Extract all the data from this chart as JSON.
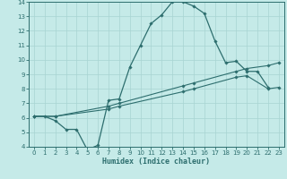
{
  "title": "",
  "xlabel": "Humidex (Indice chaleur)",
  "bg_color": "#c5eae8",
  "grid_color": "#a8d4d2",
  "line_color": "#2d6e6e",
  "xlim": [
    -0.5,
    23.5
  ],
  "ylim": [
    4,
    14
  ],
  "xticks": [
    0,
    1,
    2,
    3,
    4,
    5,
    6,
    7,
    8,
    9,
    10,
    11,
    12,
    13,
    14,
    15,
    16,
    17,
    18,
    19,
    20,
    21,
    22,
    23
  ],
  "yticks": [
    4,
    5,
    6,
    7,
    8,
    9,
    10,
    11,
    12,
    13,
    14
  ],
  "line1_x": [
    0,
    1,
    2,
    3,
    4,
    5,
    6,
    7,
    8,
    9,
    10,
    11,
    12,
    13,
    14,
    15,
    16,
    17,
    18,
    19,
    20,
    21,
    22
  ],
  "line1_y": [
    6.1,
    6.1,
    5.8,
    5.2,
    5.2,
    3.8,
    4.1,
    7.2,
    7.3,
    9.5,
    11.0,
    12.5,
    13.1,
    14.0,
    14.0,
    13.7,
    13.2,
    11.3,
    9.8,
    9.9,
    9.2,
    9.2,
    8.1
  ],
  "line2_x": [
    0,
    2,
    7,
    8,
    14,
    15,
    19,
    20,
    22,
    23
  ],
  "line2_y": [
    6.1,
    6.1,
    6.8,
    7.0,
    8.2,
    8.4,
    9.2,
    9.4,
    9.6,
    9.8
  ],
  "line3_x": [
    0,
    2,
    7,
    8,
    14,
    15,
    19,
    20,
    22,
    23
  ],
  "line3_y": [
    6.1,
    6.1,
    6.6,
    6.8,
    7.8,
    8.0,
    8.8,
    8.9,
    8.0,
    8.1
  ]
}
